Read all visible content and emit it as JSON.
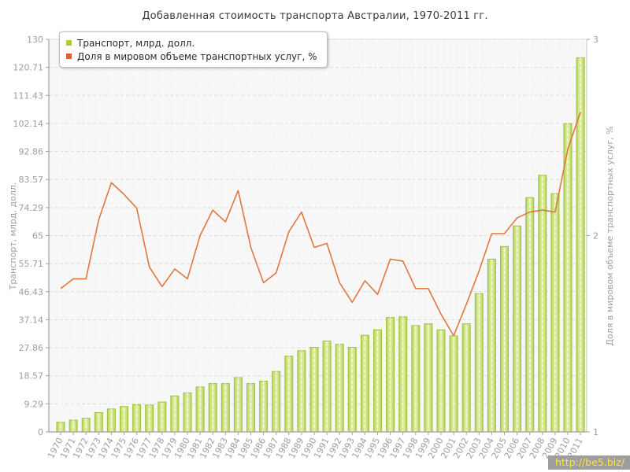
{
  "watermark": {
    "text": "http://be5.biz/"
  },
  "colors": {
    "bar_fill_light": "#dcee9f",
    "bar_fill_edge": "#b4d056",
    "bar_stroke": "#9fc23c",
    "bar_legend": "#b2cc34",
    "line": "#e0773f",
    "line_legend": "#dd5f2b",
    "plot_bg": "#f7f7f7",
    "grid_h": "#dcdcdc",
    "grid_v": "#ffffff",
    "axis": "#a0a0a0",
    "tick_text": "#9e9e9e",
    "watermark_bg": "#9e9e9e",
    "watermark_text": "#ffe63a"
  },
  "chart_data": {
    "type": "combo-bar-line",
    "title": "Добавленная стоимость транспорта Австралии, 1970-2011 гг.",
    "categories": [
      "1970",
      "1971",
      "1972",
      "1973",
      "1974",
      "1975",
      "1976",
      "1977",
      "1978",
      "1979",
      "1980",
      "1981",
      "1982",
      "1983",
      "1984",
      "1985",
      "1986",
      "1987",
      "1988",
      "1989",
      "1990",
      "1991",
      "1992",
      "1993",
      "1994",
      "1995",
      "1996",
      "1997",
      "1998",
      "1999",
      "2000",
      "2001",
      "2002",
      "2003",
      "2004",
      "2005",
      "2006",
      "2007",
      "2008",
      "2009",
      "2010",
      "2011"
    ],
    "series": [
      {
        "name": "Транспорт, млрд. долл.",
        "type": "bar",
        "axis": "left",
        "values": [
          3.2,
          3.9,
          4.5,
          6.4,
          7.6,
          8.4,
          9.0,
          8.9,
          9.9,
          11.9,
          12.9,
          14.9,
          16.0,
          16.0,
          18.0,
          16.0,
          16.8,
          20.0,
          25.1,
          26.9,
          28.0,
          30.1,
          29.0,
          28.0,
          32.0,
          33.8,
          37.9,
          38.1,
          35.2,
          35.8,
          33.8,
          31.8,
          35.8,
          45.8,
          57.2,
          61.4,
          68.2,
          77.6,
          85.0,
          78.9,
          102.1,
          123.9
        ]
      },
      {
        "name": "Доля в мировом объеме транспортных услуг, %",
        "type": "line",
        "axis": "right",
        "values": [
          1.73,
          1.78,
          1.78,
          2.08,
          2.27,
          2.21,
          2.14,
          1.84,
          1.74,
          1.83,
          1.78,
          2.0,
          2.13,
          2.07,
          2.23,
          1.94,
          1.76,
          1.81,
          2.02,
          2.12,
          1.94,
          1.96,
          1.76,
          1.66,
          1.77,
          1.7,
          1.88,
          1.87,
          1.73,
          1.73,
          1.6,
          1.49,
          1.65,
          1.82,
          2.01,
          2.01,
          2.09,
          2.12,
          2.13,
          2.12,
          2.44,
          2.63
        ]
      }
    ],
    "ylabel_left": "Транспорт, млрд. долл.",
    "ylabel_right": "Доля в мировом объеме транспортных услуг, %",
    "ylim_left": [
      0,
      130
    ],
    "ylim_right": [
      1,
      3
    ],
    "left_ticks": [
      "0",
      "9.29",
      "18.57",
      "27.86",
      "37.14",
      "46.43",
      "55.71",
      "65",
      "74.29",
      "83.57",
      "92.86",
      "102.14",
      "111.43",
      "120.71",
      "130"
    ],
    "right_ticks": [
      "1",
      "2",
      "3"
    ],
    "grid": true,
    "legend_position": "top-left"
  }
}
